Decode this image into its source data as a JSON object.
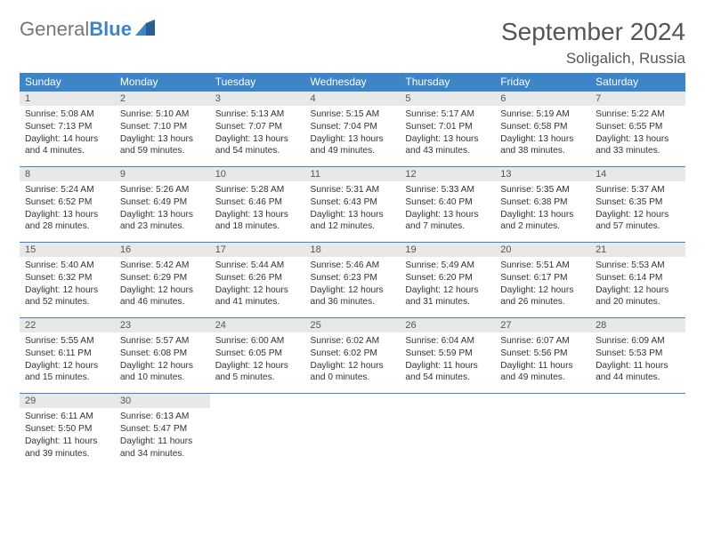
{
  "logo": {
    "part1": "General",
    "part2": "Blue"
  },
  "title": "September 2024",
  "location": "Soligalich, Russia",
  "colors": {
    "header_bg": "#3d85c6",
    "header_fg": "#ffffff",
    "daynum_bg": "#e8e8e8",
    "border": "#3d85c6"
  },
  "weekdays": [
    "Sunday",
    "Monday",
    "Tuesday",
    "Wednesday",
    "Thursday",
    "Friday",
    "Saturday"
  ],
  "weeks": [
    [
      {
        "n": "1",
        "sr": "5:08 AM",
        "ss": "7:13 PM",
        "dl": "14 hours and 4 minutes."
      },
      {
        "n": "2",
        "sr": "5:10 AM",
        "ss": "7:10 PM",
        "dl": "13 hours and 59 minutes."
      },
      {
        "n": "3",
        "sr": "5:13 AM",
        "ss": "7:07 PM",
        "dl": "13 hours and 54 minutes."
      },
      {
        "n": "4",
        "sr": "5:15 AM",
        "ss": "7:04 PM",
        "dl": "13 hours and 49 minutes."
      },
      {
        "n": "5",
        "sr": "5:17 AM",
        "ss": "7:01 PM",
        "dl": "13 hours and 43 minutes."
      },
      {
        "n": "6",
        "sr": "5:19 AM",
        "ss": "6:58 PM",
        "dl": "13 hours and 38 minutes."
      },
      {
        "n": "7",
        "sr": "5:22 AM",
        "ss": "6:55 PM",
        "dl": "13 hours and 33 minutes."
      }
    ],
    [
      {
        "n": "8",
        "sr": "5:24 AM",
        "ss": "6:52 PM",
        "dl": "13 hours and 28 minutes."
      },
      {
        "n": "9",
        "sr": "5:26 AM",
        "ss": "6:49 PM",
        "dl": "13 hours and 23 minutes."
      },
      {
        "n": "10",
        "sr": "5:28 AM",
        "ss": "6:46 PM",
        "dl": "13 hours and 18 minutes."
      },
      {
        "n": "11",
        "sr": "5:31 AM",
        "ss": "6:43 PM",
        "dl": "13 hours and 12 minutes."
      },
      {
        "n": "12",
        "sr": "5:33 AM",
        "ss": "6:40 PM",
        "dl": "13 hours and 7 minutes."
      },
      {
        "n": "13",
        "sr": "5:35 AM",
        "ss": "6:38 PM",
        "dl": "13 hours and 2 minutes."
      },
      {
        "n": "14",
        "sr": "5:37 AM",
        "ss": "6:35 PM",
        "dl": "12 hours and 57 minutes."
      }
    ],
    [
      {
        "n": "15",
        "sr": "5:40 AM",
        "ss": "6:32 PM",
        "dl": "12 hours and 52 minutes."
      },
      {
        "n": "16",
        "sr": "5:42 AM",
        "ss": "6:29 PM",
        "dl": "12 hours and 46 minutes."
      },
      {
        "n": "17",
        "sr": "5:44 AM",
        "ss": "6:26 PM",
        "dl": "12 hours and 41 minutes."
      },
      {
        "n": "18",
        "sr": "5:46 AM",
        "ss": "6:23 PM",
        "dl": "12 hours and 36 minutes."
      },
      {
        "n": "19",
        "sr": "5:49 AM",
        "ss": "6:20 PM",
        "dl": "12 hours and 31 minutes."
      },
      {
        "n": "20",
        "sr": "5:51 AM",
        "ss": "6:17 PM",
        "dl": "12 hours and 26 minutes."
      },
      {
        "n": "21",
        "sr": "5:53 AM",
        "ss": "6:14 PM",
        "dl": "12 hours and 20 minutes."
      }
    ],
    [
      {
        "n": "22",
        "sr": "5:55 AM",
        "ss": "6:11 PM",
        "dl": "12 hours and 15 minutes."
      },
      {
        "n": "23",
        "sr": "5:57 AM",
        "ss": "6:08 PM",
        "dl": "12 hours and 10 minutes."
      },
      {
        "n": "24",
        "sr": "6:00 AM",
        "ss": "6:05 PM",
        "dl": "12 hours and 5 minutes."
      },
      {
        "n": "25",
        "sr": "6:02 AM",
        "ss": "6:02 PM",
        "dl": "12 hours and 0 minutes."
      },
      {
        "n": "26",
        "sr": "6:04 AM",
        "ss": "5:59 PM",
        "dl": "11 hours and 54 minutes."
      },
      {
        "n": "27",
        "sr": "6:07 AM",
        "ss": "5:56 PM",
        "dl": "11 hours and 49 minutes."
      },
      {
        "n": "28",
        "sr": "6:09 AM",
        "ss": "5:53 PM",
        "dl": "11 hours and 44 minutes."
      }
    ],
    [
      {
        "n": "29",
        "sr": "6:11 AM",
        "ss": "5:50 PM",
        "dl": "11 hours and 39 minutes."
      },
      {
        "n": "30",
        "sr": "6:13 AM",
        "ss": "5:47 PM",
        "dl": "11 hours and 34 minutes."
      },
      null,
      null,
      null,
      null,
      null
    ]
  ],
  "labels": {
    "sunrise": "Sunrise: ",
    "sunset": "Sunset: ",
    "daylight": "Daylight: "
  }
}
